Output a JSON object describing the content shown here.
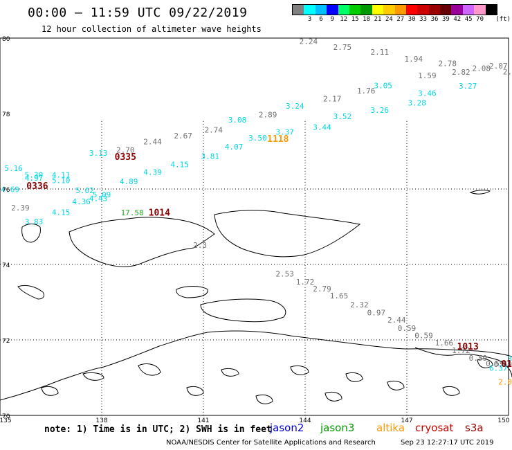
{
  "header": {
    "title": "00:00 — 11:59 UTC 09/22/2019",
    "subtitle": "12 hour collection of altimeter wave heights"
  },
  "colorbar": {
    "unit": "(ft)",
    "bins": [
      {
        "label": "",
        "color": "#808080"
      },
      {
        "label": "3",
        "color": "#00ffff"
      },
      {
        "label": "6",
        "color": "#00bfff"
      },
      {
        "label": "9",
        "color": "#0000ff"
      },
      {
        "label": "12",
        "color": "#00ff66"
      },
      {
        "label": "15",
        "color": "#00cc00"
      },
      {
        "label": "18",
        "color": "#009900"
      },
      {
        "label": "21",
        "color": "#ffff00"
      },
      {
        "label": "24",
        "color": "#ffcc00"
      },
      {
        "label": "27",
        "color": "#ff9900"
      },
      {
        "label": "30",
        "color": "#ff0000"
      },
      {
        "label": "33",
        "color": "#cc0000"
      },
      {
        "label": "36",
        "color": "#990000"
      },
      {
        "label": "39",
        "color": "#660000"
      },
      {
        "label": "42",
        "color": "#990099"
      },
      {
        "label": "45",
        "color": "#cc66ff"
      },
      {
        "label": "70",
        "color": "#ff99cc"
      },
      {
        "label": "",
        "color": "#000000"
      }
    ]
  },
  "axes": {
    "lat_labels": [
      "80",
      "78",
      "76",
      "74",
      "72",
      "70"
    ],
    "lon_labels": [
      "135",
      "138",
      "141",
      "144",
      "147",
      "150"
    ]
  },
  "measurements": [
    {
      "v": "2.24",
      "c": "gray",
      "lon": 144.1,
      "lat": 79.84
    },
    {
      "v": "2.75",
      "c": "gray",
      "lon": 145.1,
      "lat": 79.69
    },
    {
      "v": "2.11",
      "c": "gray",
      "lon": 146.2,
      "lat": 79.56
    },
    {
      "v": "1.94",
      "c": "gray",
      "lon": 147.2,
      "lat": 79.38
    },
    {
      "v": "2.78",
      "c": "gray",
      "lon": 148.2,
      "lat": 79.26
    },
    {
      "v": "2.82",
      "c": "gray",
      "lon": 148.6,
      "lat": 79.03
    },
    {
      "v": "2.08",
      "c": "gray",
      "lon": 149.2,
      "lat": 79.13
    },
    {
      "v": "2.07",
      "c": "gray",
      "lon": 149.7,
      "lat": 79.19
    },
    {
      "v": "2.",
      "c": "gray",
      "lon": 150.0,
      "lat": 79.04
    },
    {
      "v": "1.59",
      "c": "gray",
      "lon": 147.6,
      "lat": 78.94
    },
    {
      "v": "1.76",
      "c": "gray",
      "lon": 145.8,
      "lat": 78.53
    },
    {
      "v": "2.17",
      "c": "gray",
      "lon": 144.8,
      "lat": 78.32
    },
    {
      "v": "2.89",
      "c": "gray",
      "lon": 142.9,
      "lat": 77.9
    },
    {
      "v": "2.74",
      "c": "gray",
      "lon": 141.3,
      "lat": 77.5
    },
    {
      "v": "2.67",
      "c": "gray",
      "lon": 140.4,
      "lat": 77.34
    },
    {
      "v": "2.44",
      "c": "gray",
      "lon": 139.5,
      "lat": 77.18
    },
    {
      "v": "2.70",
      "c": "gray",
      "lon": 138.7,
      "lat": 76.96
    },
    {
      "v": "2.3",
      "c": "gray",
      "lon": 140.9,
      "lat": 74.44
    },
    {
      "v": "2.53",
      "c": "gray",
      "lon": 143.4,
      "lat": 73.68
    },
    {
      "v": "1.72",
      "c": "gray",
      "lon": 144.0,
      "lat": 73.47
    },
    {
      "v": "2.79",
      "c": "gray",
      "lon": 144.5,
      "lat": 73.28
    },
    {
      "v": "1.65",
      "c": "gray",
      "lon": 145.0,
      "lat": 73.1
    },
    {
      "v": "2.32",
      "c": "gray",
      "lon": 145.6,
      "lat": 72.86
    },
    {
      "v": "0.97",
      "c": "gray",
      "lon": 146.1,
      "lat": 72.65
    },
    {
      "v": "2.44",
      "c": "gray",
      "lon": 146.7,
      "lat": 72.46
    },
    {
      "v": "0.59",
      "c": "gray",
      "lon": 147.0,
      "lat": 72.24
    },
    {
      "v": "0.59",
      "c": "gray",
      "lon": 147.5,
      "lat": 72.05
    },
    {
      "v": "1.66",
      "c": "gray",
      "lon": 148.1,
      "lat": 71.85
    },
    {
      "v": "1.72",
      "c": "gray",
      "lon": 148.6,
      "lat": 71.65
    },
    {
      "v": "0.59",
      "c": "gray",
      "lon": 149.1,
      "lat": 71.45
    },
    {
      "v": "0.59",
      "c": "gray",
      "lon": 149.6,
      "lat": 71.3
    },
    {
      "v": "0.59",
      "c": "gray",
      "lon": 150.0,
      "lat": 71.28
    },
    {
      "v": "2.39",
      "c": "gray",
      "lon": 135.6,
      "lat": 75.43
    },
    {
      "v": "3.05",
      "c": "cyan",
      "lon": 146.3,
      "lat": 78.67
    },
    {
      "v": "3.46",
      "c": "cyan",
      "lon": 147.6,
      "lat": 78.47
    },
    {
      "v": "3.27",
      "c": "cyan",
      "lon": 148.8,
      "lat": 78.66
    },
    {
      "v": "3.28",
      "c": "cyan",
      "lon": 147.3,
      "lat": 78.21
    },
    {
      "v": "3.26",
      "c": "cyan",
      "lon": 146.2,
      "lat": 78.02
    },
    {
      "v": "3.52",
      "c": "cyan",
      "lon": 145.1,
      "lat": 77.85
    },
    {
      "v": "3.44",
      "c": "cyan",
      "lon": 144.5,
      "lat": 77.57
    },
    {
      "v": "3.24",
      "c": "cyan",
      "lon": 143.7,
      "lat": 78.13
    },
    {
      "v": "3.37",
      "c": "cyan",
      "lon": 143.4,
      "lat": 77.44
    },
    {
      "v": "3.50",
      "c": "cyan",
      "lon": 142.6,
      "lat": 77.28
    },
    {
      "v": "3.08",
      "c": "cyan",
      "lon": 142.0,
      "lat": 77.76
    },
    {
      "v": "4.07",
      "c": "cyan",
      "lon": 141.9,
      "lat": 77.05
    },
    {
      "v": "3.81",
      "c": "cyan",
      "lon": 141.2,
      "lat": 76.8
    },
    {
      "v": "4.15",
      "c": "cyan",
      "lon": 140.3,
      "lat": 76.58
    },
    {
      "v": "4.39",
      "c": "cyan",
      "lon": 139.5,
      "lat": 76.38
    },
    {
      "v": "4.89",
      "c": "cyan",
      "lon": 138.8,
      "lat": 76.13
    },
    {
      "v": "3.13",
      "c": "cyan",
      "lon": 137.9,
      "lat": 76.88
    },
    {
      "v": "5.16",
      "c": "cyan",
      "lon": 135.4,
      "lat": 76.48
    },
    {
      "v": "5.30",
      "c": "cyan",
      "lon": 136.0,
      "lat": 76.3
    },
    {
      "v": "4.97",
      "c": "cyan",
      "lon": 136.0,
      "lat": 76.22
    },
    {
      "v": "4.11",
      "c": "cyan",
      "lon": 136.8,
      "lat": 76.3
    },
    {
      "v": "5.10",
      "c": "cyan",
      "lon": 136.8,
      "lat": 76.16
    },
    {
      "v": "4.69",
      "c": "cyan",
      "lon": 135.3,
      "lat": 75.92
    },
    {
      "v": "5.02",
      "c": "cyan",
      "lon": 137.5,
      "lat": 75.89
    },
    {
      "v": "5.09",
      "c": "cyan",
      "lon": 138.0,
      "lat": 75.78
    },
    {
      "v": "4.43",
      "c": "cyan",
      "lon": 137.9,
      "lat": 75.68
    },
    {
      "v": "4.36",
      "c": "cyan",
      "lon": 137.4,
      "lat": 75.6
    },
    {
      "v": "4.15",
      "c": "cyan",
      "lon": 136.8,
      "lat": 75.31
    },
    {
      "v": "3.83",
      "c": "cyan",
      "lon": 136.0,
      "lat": 75.06
    },
    {
      "v": "6.37",
      "c": "cyan",
      "lon": 149.7,
      "lat": 71.18
    },
    {
      "v": "3",
      "c": "cyan",
      "lon": 150.0,
      "lat": 71.43
    },
    {
      "v": "1118",
      "c": "orange",
      "lon": 143.2,
      "lat": 77.25
    },
    {
      "v": "2.0",
      "c": "orange",
      "lon": 150.0,
      "lat": 70.82
    },
    {
      "v": "17.58",
      "c": "green",
      "lon": 138.9,
      "lat": 75.3
    },
    {
      "v": "0335",
      "c": "darkred",
      "lon": 138.7,
      "lat": 76.77
    },
    {
      "v": "0336",
      "c": "darkred",
      "lon": 136.1,
      "lat": 76.0
    },
    {
      "v": "1014",
      "c": "darkred",
      "lon": 139.7,
      "lat": 75.29
    },
    {
      "v": "1013",
      "c": "darkred",
      "lon": 148.8,
      "lat": 71.74
    },
    {
      "v": "01",
      "c": "darkred",
      "lon": 150.0,
      "lat": 71.28
    }
  ],
  "footer": {
    "note": "note: 1) Time is in UTC; 2) SWH is in feet",
    "satellites": [
      {
        "name": "jason2",
        "color": "#0000cc"
      },
      {
        "name": "jason3",
        "color": "#009900"
      },
      {
        "name": "altika",
        "color": "#ff9900"
      },
      {
        "name": "cryosat",
        "color": "#cc0000"
      },
      {
        "name": "s3a",
        "color": "#990000"
      }
    ],
    "credit": "NOAA/NESDIS Center for Satellite Applications and Research",
    "timestamp": "Sep 23 12:27:17 UTC 2019"
  }
}
